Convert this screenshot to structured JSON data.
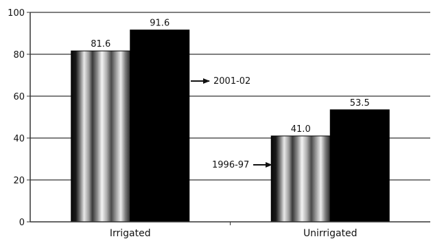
{
  "chart_data": {
    "type": "bar",
    "categories": [
      "Irrigated",
      "Unirrigated"
    ],
    "series": [
      {
        "name": "1996-97",
        "values": [
          81.6,
          41.0
        ],
        "labels": [
          "81.6",
          "41.0"
        ]
      },
      {
        "name": "2001-02",
        "values": [
          91.6,
          53.5
        ],
        "labels": [
          "91.6",
          "53.5"
        ]
      }
    ],
    "ylim": [
      0,
      100
    ],
    "yticks": [
      "0",
      "20",
      "40",
      "60",
      "80",
      "100"
    ],
    "grid": true,
    "legend": "inline arrows pointing to bars",
    "colors": {
      "series_1996_97": "metallic silver gradient",
      "series_2001_02": "#000000",
      "grid": "#555555"
    }
  }
}
